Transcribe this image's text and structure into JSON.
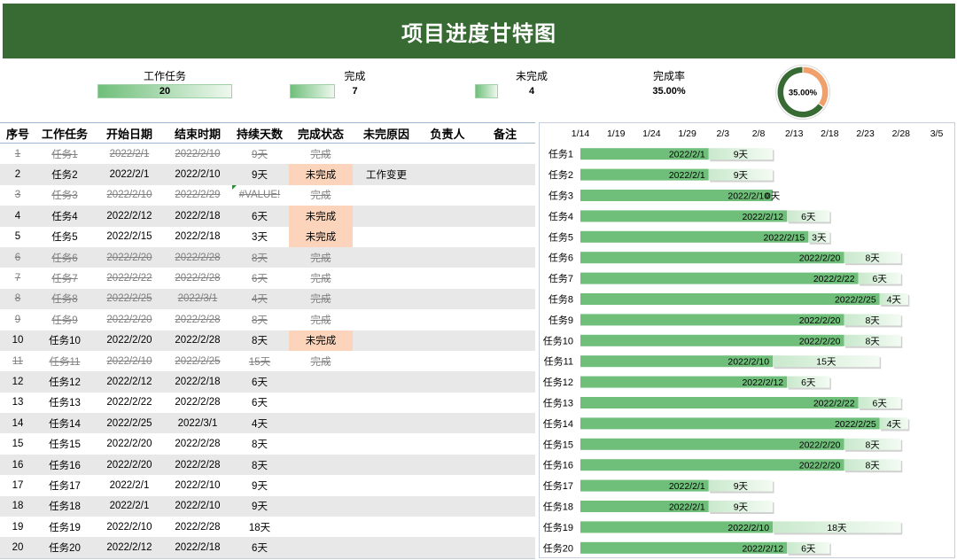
{
  "title": "项目进度甘特图",
  "colors": {
    "title_bg": "#386a33",
    "bar_green": "#6fbf7a",
    "bar_light": "#c9e9cc",
    "row_alt": "#e8e8e8",
    "undone_highlight": "#fbd4bb",
    "done_text": "#808080",
    "border": "#9db5cf"
  },
  "summary": {
    "total": {
      "label": "工作任务",
      "value": "20"
    },
    "done": {
      "label": "完成",
      "value": "7"
    },
    "undone": {
      "label": "未完成",
      "value": "4"
    },
    "rate": {
      "label": "完成率",
      "value": "35.00%"
    }
  },
  "table": {
    "headers": [
      "序号",
      "工作任务",
      "开始日期",
      "结束时期",
      "持续天数",
      "完成状态",
      "未完原因",
      "负责人",
      "备注"
    ],
    "rows": [
      {
        "no": "1",
        "task": "任务1",
        "start": "2022/2/1",
        "end": "2022/2/10",
        "days": "9天",
        "status": "完成"
      },
      {
        "no": "2",
        "task": "任务2",
        "start": "2022/2/1",
        "end": "2022/2/10",
        "days": "9天",
        "status": "未完成",
        "reason": "工作变更"
      },
      {
        "no": "3",
        "task": "任务3",
        "start": "2022/2/10",
        "end": "2022/2/29",
        "days": "#VALUE!",
        "status": "完成"
      },
      {
        "no": "4",
        "task": "任务4",
        "start": "2022/2/12",
        "end": "2022/2/18",
        "days": "6天",
        "status": "未完成"
      },
      {
        "no": "5",
        "task": "任务5",
        "start": "2022/2/15",
        "end": "2022/2/18",
        "days": "3天",
        "status": "未完成"
      },
      {
        "no": "6",
        "task": "任务6",
        "start": "2022/2/20",
        "end": "2022/2/28",
        "days": "8天",
        "status": "完成"
      },
      {
        "no": "7",
        "task": "任务7",
        "start": "2022/2/22",
        "end": "2022/2/28",
        "days": "6天",
        "status": "完成"
      },
      {
        "no": "8",
        "task": "任务8",
        "start": "2022/2/25",
        "end": "2022/3/1",
        "days": "4天",
        "status": "完成"
      },
      {
        "no": "9",
        "task": "任务9",
        "start": "2022/2/20",
        "end": "2022/2/28",
        "days": "8天",
        "status": "完成"
      },
      {
        "no": "10",
        "task": "任务10",
        "start": "2022/2/20",
        "end": "2022/2/28",
        "days": "8天",
        "status": "未完成"
      },
      {
        "no": "11",
        "task": "任务11",
        "start": "2022/2/10",
        "end": "2022/2/25",
        "days": "15天",
        "status": "完成"
      },
      {
        "no": "12",
        "task": "任务12",
        "start": "2022/2/12",
        "end": "2022/2/18",
        "days": "6天"
      },
      {
        "no": "13",
        "task": "任务13",
        "start": "2022/2/22",
        "end": "2022/2/28",
        "days": "6天"
      },
      {
        "no": "14",
        "task": "任务14",
        "start": "2022/2/25",
        "end": "2022/3/1",
        "days": "4天"
      },
      {
        "no": "15",
        "task": "任务15",
        "start": "2022/2/20",
        "end": "2022/2/28",
        "days": "8天"
      },
      {
        "no": "16",
        "task": "任务16",
        "start": "2022/2/20",
        "end": "2022/2/28",
        "days": "8天"
      },
      {
        "no": "17",
        "task": "任务17",
        "start": "2022/2/1",
        "end": "2022/2/10",
        "days": "9天"
      },
      {
        "no": "18",
        "task": "任务18",
        "start": "2022/2/1",
        "end": "2022/2/10",
        "days": "9天"
      },
      {
        "no": "19",
        "task": "任务19",
        "start": "2022/2/10",
        "end": "2022/2/28",
        "days": "18天"
      },
      {
        "no": "20",
        "task": "任务20",
        "start": "2022/2/12",
        "end": "2022/2/18",
        "days": "6天"
      }
    ]
  },
  "chart_data": [
    {
      "type": "bar",
      "orientation": "horizontal",
      "stacked": true,
      "grid": false,
      "legend": false,
      "categories": [
        "任务1",
        "任务2",
        "任务3",
        "任务4",
        "任务5",
        "任务6",
        "任务7",
        "任务8",
        "任务9",
        "任务10",
        "任务11",
        "任务12",
        "任务13",
        "任务14",
        "任务15",
        "任务16",
        "任务17",
        "任务18",
        "任务19",
        "任务20"
      ],
      "x_ticks": [
        "1/14",
        "1/19",
        "1/24",
        "1/29",
        "2/3",
        "2/8",
        "2/13",
        "2/18",
        "2/23",
        "2/28",
        "3/5"
      ],
      "xlim": [
        "2022/1/14",
        "2022/3/5"
      ],
      "series": [
        {
          "values": [
            "2022/2/1",
            "2022/2/1",
            "2022/2/10",
            "2022/2/12",
            "2022/2/15",
            "2022/2/20",
            "2022/2/22",
            "2022/2/25",
            "2022/2/20",
            "2022/2/20",
            "2022/2/10",
            "2022/2/12",
            "2022/2/22",
            "2022/2/25",
            "2022/2/20",
            "2022/2/20",
            "2022/2/1",
            "2022/2/1",
            "2022/2/10",
            "2022/2/12"
          ]
        },
        {
          "values": [
            9,
            9,
            0,
            6,
            3,
            8,
            6,
            4,
            8,
            8,
            15,
            6,
            6,
            4,
            8,
            8,
            9,
            9,
            18,
            6
          ]
        }
      ],
      "duration_labels": [
        "9天",
        "9天",
        "0天",
        "6天",
        "3天",
        "8天",
        "6天",
        "4天",
        "8天",
        "8天",
        "15天",
        "6天",
        "6天",
        "4天",
        "8天",
        "8天",
        "9天",
        "9天",
        "18天",
        "6天"
      ]
    },
    {
      "type": "pie",
      "hole": true,
      "values": [
        35,
        65
      ],
      "colors": [
        "#f0a06a",
        "#386a33"
      ],
      "center_label": "35.00%"
    }
  ]
}
